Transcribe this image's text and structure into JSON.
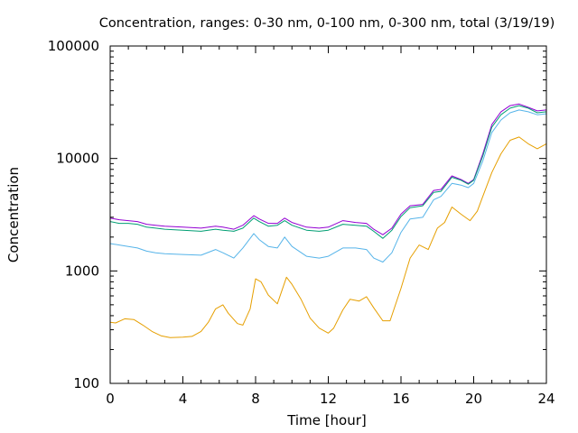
{
  "chart_data": {
    "type": "line",
    "title": "Concentration, ranges: 0-30 nm, 0-100 nm, 0-300 nm, total (3/19/19)",
    "xlabel": "Time [hour]",
    "ylabel": "Concentration",
    "xlim": [
      0,
      24
    ],
    "ylim": [
      100,
      100000
    ],
    "yscale": "log",
    "grid": false,
    "legend": "none",
    "x_ticks": [
      0,
      4,
      8,
      12,
      16,
      20,
      24
    ],
    "x_tick_labels": [
      "0",
      "4",
      "8",
      "12",
      "16",
      "20",
      "24"
    ],
    "y_ticks": [
      100,
      1000,
      10000,
      100000
    ],
    "y_tick_labels": [
      "100",
      "1000",
      "10000",
      "100000"
    ],
    "series": [
      {
        "color": "#9400d3",
        "points": [
          [
            0,
            2950
          ],
          [
            0.5,
            2850
          ],
          [
            1,
            2800
          ],
          [
            1.5,
            2750
          ],
          [
            2,
            2600
          ],
          [
            2.5,
            2550
          ],
          [
            3,
            2500
          ],
          [
            4,
            2450
          ],
          [
            5,
            2400
          ],
          [
            5.8,
            2500
          ],
          [
            6.2,
            2450
          ],
          [
            6.8,
            2350
          ],
          [
            7.3,
            2550
          ],
          [
            7.9,
            3100
          ],
          [
            8.2,
            2900
          ],
          [
            8.7,
            2650
          ],
          [
            9.2,
            2650
          ],
          [
            9.6,
            2950
          ],
          [
            10,
            2700
          ],
          [
            10.8,
            2450
          ],
          [
            11.5,
            2400
          ],
          [
            12,
            2450
          ],
          [
            12.8,
            2800
          ],
          [
            13.5,
            2700
          ],
          [
            14.1,
            2650
          ],
          [
            14.5,
            2350
          ],
          [
            15,
            2100
          ],
          [
            15.5,
            2400
          ],
          [
            16,
            3200
          ],
          [
            16.5,
            3800
          ],
          [
            17.2,
            3900
          ],
          [
            17.8,
            5200
          ],
          [
            18.2,
            5300
          ],
          [
            18.8,
            7000
          ],
          [
            19.3,
            6500
          ],
          [
            19.7,
            6000
          ],
          [
            20,
            6500
          ],
          [
            20.5,
            11000
          ],
          [
            21,
            20000
          ],
          [
            21.5,
            26000
          ],
          [
            22,
            29500
          ],
          [
            22.5,
            30500
          ],
          [
            23,
            28500
          ],
          [
            23.5,
            26500
          ],
          [
            24,
            27000
          ]
        ]
      },
      {
        "color": "#009e73",
        "points": [
          [
            0,
            2750
          ],
          [
            0.5,
            2650
          ],
          [
            1,
            2650
          ],
          [
            1.5,
            2600
          ],
          [
            2,
            2450
          ],
          [
            2.5,
            2400
          ],
          [
            3,
            2350
          ],
          [
            4,
            2300
          ],
          [
            5,
            2250
          ],
          [
            5.8,
            2350
          ],
          [
            6.2,
            2300
          ],
          [
            6.8,
            2250
          ],
          [
            7.3,
            2400
          ],
          [
            7.9,
            2950
          ],
          [
            8.2,
            2750
          ],
          [
            8.7,
            2500
          ],
          [
            9.2,
            2550
          ],
          [
            9.6,
            2800
          ],
          [
            10,
            2550
          ],
          [
            10.8,
            2300
          ],
          [
            11.5,
            2250
          ],
          [
            12,
            2300
          ],
          [
            12.8,
            2600
          ],
          [
            13.5,
            2550
          ],
          [
            14.1,
            2500
          ],
          [
            14.5,
            2250
          ],
          [
            15,
            1950
          ],
          [
            15.5,
            2300
          ],
          [
            16,
            3050
          ],
          [
            16.5,
            3650
          ],
          [
            17.2,
            3800
          ],
          [
            17.8,
            5000
          ],
          [
            18.2,
            5100
          ],
          [
            18.8,
            6800
          ],
          [
            19.3,
            6400
          ],
          [
            19.7,
            5900
          ],
          [
            20,
            6400
          ],
          [
            20.5,
            10500
          ],
          [
            21,
            19000
          ],
          [
            21.5,
            24500
          ],
          [
            22,
            28000
          ],
          [
            22.5,
            29500
          ],
          [
            23,
            28000
          ],
          [
            23.5,
            25500
          ],
          [
            24,
            26000
          ]
        ]
      },
      {
        "color": "#56b4e9",
        "points": [
          [
            0,
            1750
          ],
          [
            0.5,
            1700
          ],
          [
            1,
            1650
          ],
          [
            1.5,
            1600
          ],
          [
            2,
            1500
          ],
          [
            2.5,
            1450
          ],
          [
            3,
            1420
          ],
          [
            4,
            1400
          ],
          [
            5,
            1380
          ],
          [
            5.8,
            1550
          ],
          [
            6.2,
            1450
          ],
          [
            6.8,
            1300
          ],
          [
            7.3,
            1600
          ],
          [
            7.9,
            2150
          ],
          [
            8.2,
            1900
          ],
          [
            8.7,
            1650
          ],
          [
            9.2,
            1600
          ],
          [
            9.6,
            2000
          ],
          [
            10,
            1650
          ],
          [
            10.8,
            1350
          ],
          [
            11.5,
            1300
          ],
          [
            12,
            1350
          ],
          [
            12.8,
            1600
          ],
          [
            13.5,
            1600
          ],
          [
            14.1,
            1550
          ],
          [
            14.5,
            1300
          ],
          [
            15,
            1200
          ],
          [
            15.5,
            1450
          ],
          [
            16,
            2200
          ],
          [
            16.5,
            2900
          ],
          [
            17.2,
            3000
          ],
          [
            17.8,
            4300
          ],
          [
            18.2,
            4600
          ],
          [
            18.8,
            6000
          ],
          [
            19.3,
            5800
          ],
          [
            19.7,
            5500
          ],
          [
            20,
            6000
          ],
          [
            20.5,
            9500
          ],
          [
            21,
            17000
          ],
          [
            21.5,
            22000
          ],
          [
            22,
            25500
          ],
          [
            22.5,
            27000
          ],
          [
            23,
            26000
          ],
          [
            23.5,
            24500
          ],
          [
            24,
            25000
          ]
        ]
      },
      {
        "color": "#e69f00",
        "points": [
          [
            0,
            350
          ],
          [
            0.3,
            345
          ],
          [
            0.8,
            375
          ],
          [
            1.3,
            370
          ],
          [
            1.8,
            330
          ],
          [
            2.3,
            290
          ],
          [
            2.8,
            265
          ],
          [
            3.3,
            255
          ],
          [
            4,
            258
          ],
          [
            4.5,
            262
          ],
          [
            5,
            290
          ],
          [
            5.4,
            350
          ],
          [
            5.8,
            460
          ],
          [
            6.2,
            500
          ],
          [
            6.5,
            420
          ],
          [
            7,
            340
          ],
          [
            7.3,
            330
          ],
          [
            7.7,
            460
          ],
          [
            8,
            850
          ],
          [
            8.3,
            800
          ],
          [
            8.7,
            610
          ],
          [
            9.2,
            510
          ],
          [
            9.7,
            880
          ],
          [
            10,
            760
          ],
          [
            10.5,
            560
          ],
          [
            11,
            380
          ],
          [
            11.5,
            310
          ],
          [
            12,
            280
          ],
          [
            12.3,
            310
          ],
          [
            12.8,
            450
          ],
          [
            13.2,
            560
          ],
          [
            13.7,
            540
          ],
          [
            14.1,
            590
          ],
          [
            14.5,
            470
          ],
          [
            15,
            360
          ],
          [
            15.4,
            360
          ],
          [
            16,
            700
          ],
          [
            16.5,
            1300
          ],
          [
            17,
            1700
          ],
          [
            17.5,
            1550
          ],
          [
            18,
            2400
          ],
          [
            18.4,
            2700
          ],
          [
            18.8,
            3700
          ],
          [
            19.3,
            3200
          ],
          [
            19.8,
            2800
          ],
          [
            20.2,
            3400
          ],
          [
            20.5,
            4600
          ],
          [
            21,
            7500
          ],
          [
            21.5,
            11000
          ],
          [
            22,
            14500
          ],
          [
            22.5,
            15500
          ],
          [
            23,
            13500
          ],
          [
            23.5,
            12200
          ],
          [
            24,
            13500
          ]
        ]
      }
    ]
  }
}
